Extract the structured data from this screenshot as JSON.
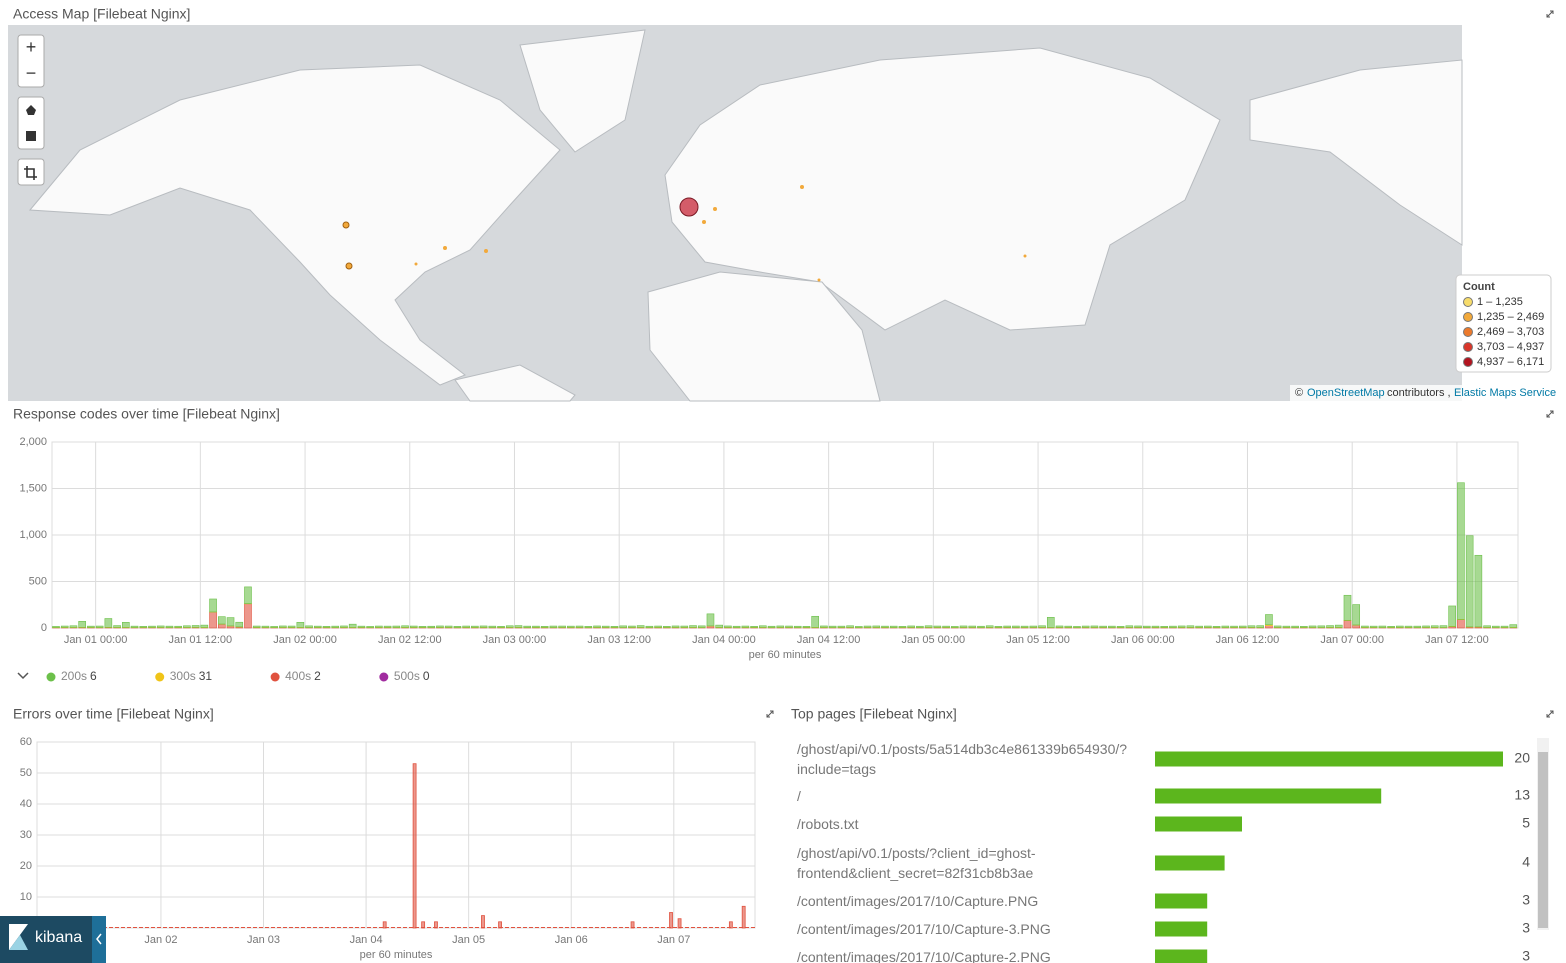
{
  "map": {
    "title": "Access Map [Filebeat Nginx]",
    "zoom_in": "+",
    "zoom_out": "−",
    "legend": {
      "title": "Count",
      "items": [
        {
          "label": "1 – 1,235",
          "color": "#f7dc6b"
        },
        {
          "label": "1,235 – 2,469",
          "color": "#f2a93b"
        },
        {
          "label": "2,469 – 3,703",
          "color": "#ec7a2c"
        },
        {
          "label": "3,703 – 4,937",
          "color": "#d9362a"
        },
        {
          "label": "4,937 – 6,171",
          "color": "#b2141f"
        }
      ]
    },
    "attribution": {
      "copyright": "©",
      "osm": "OpenStreetMap",
      "contributors": "contributors ,",
      "ems": "Elastic Maps Service"
    }
  },
  "chart_data": [
    {
      "type": "bar",
      "stacked": true,
      "title": "Response codes over time [Filebeat Nginx]",
      "x_label": "per 60 minutes",
      "grid": true,
      "xlim": [
        0,
        168
      ],
      "ylim": [
        0,
        2000
      ],
      "yticks": [
        0,
        500,
        {
          "value": 1000,
          "label": "1,000"
        },
        {
          "value": 1500,
          "label": "1,500"
        },
        {
          "value": 2000,
          "label": "2,000"
        }
      ],
      "xticks": [
        {
          "value": 5,
          "label": "Jan 01 00:00"
        },
        {
          "value": 17,
          "label": "Jan 01 12:00"
        },
        {
          "value": 29,
          "label": "Jan 02 00:00"
        },
        {
          "value": 41,
          "label": "Jan 02 12:00"
        },
        {
          "value": 53,
          "label": "Jan 03 00:00"
        },
        {
          "value": 65,
          "label": "Jan 03 12:00"
        },
        {
          "value": 77,
          "label": "Jan 04 00:00"
        },
        {
          "value": 89,
          "label": "Jan 04 12:00"
        },
        {
          "value": 101,
          "label": "Jan 05 00:00"
        },
        {
          "value": 113,
          "label": "Jan 05 12:00"
        },
        {
          "value": 125,
          "label": "Jan 06 00:00"
        },
        {
          "value": 137,
          "label": "Jan 06 12:00"
        },
        {
          "value": 149,
          "label": "Jan 07 00:00"
        },
        {
          "value": 161,
          "label": "Jan 07 12:00"
        }
      ],
      "x": [
        0,
        1,
        2,
        3,
        4,
        5,
        6,
        7,
        8,
        9,
        10,
        11,
        12,
        13,
        14,
        15,
        16,
        17,
        18,
        19,
        20,
        21,
        22,
        23,
        24,
        25,
        26,
        27,
        28,
        29,
        30,
        31,
        32,
        33,
        34,
        35,
        36,
        37,
        38,
        39,
        40,
        41,
        42,
        43,
        44,
        45,
        46,
        47,
        48,
        49,
        50,
        51,
        52,
        53,
        54,
        55,
        56,
        57,
        58,
        59,
        60,
        61,
        62,
        63,
        64,
        65,
        66,
        67,
        68,
        69,
        70,
        71,
        72,
        73,
        74,
        75,
        76,
        77,
        78,
        79,
        80,
        81,
        82,
        83,
        84,
        85,
        86,
        87,
        88,
        89,
        90,
        91,
        92,
        93,
        94,
        95,
        96,
        97,
        98,
        99,
        100,
        101,
        102,
        103,
        104,
        105,
        106,
        107,
        108,
        109,
        110,
        111,
        112,
        113,
        114,
        115,
        116,
        117,
        118,
        119,
        120,
        121,
        122,
        123,
        124,
        125,
        126,
        127,
        128,
        129,
        130,
        131,
        132,
        133,
        134,
        135,
        136,
        137,
        138,
        139,
        140,
        141,
        142,
        143,
        144,
        145,
        146,
        147,
        148,
        149,
        150,
        151,
        152,
        153,
        154,
        155,
        156,
        157,
        158,
        159,
        160,
        161,
        162,
        163,
        164,
        165,
        166,
        167
      ],
      "series": [
        {
          "name": "200s",
          "count": 6,
          "color": "#6cc04a",
          "values": [
            12,
            15,
            18,
            65,
            14,
            16,
            95,
            20,
            55,
            15,
            12,
            14,
            16,
            15,
            13,
            18,
            20,
            25,
            140,
            80,
            90,
            50,
            180,
            15,
            14,
            12,
            16,
            15,
            55,
            18,
            14,
            12,
            15,
            16,
            35,
            14,
            12,
            15,
            14,
            16,
            18,
            15,
            12,
            14,
            16,
            15,
            13,
            15,
            14,
            16,
            15,
            12,
            18,
            20,
            15,
            14,
            12,
            16,
            15,
            14,
            15,
            13,
            16,
            14,
            12,
            18,
            15,
            20,
            14,
            15,
            12,
            16,
            15,
            20,
            18,
            130,
            25,
            16,
            14,
            15,
            12,
            18,
            14,
            16,
            15,
            14,
            12,
            120,
            16,
            15,
            14,
            18,
            12,
            15,
            16,
            14,
            15,
            12,
            16,
            14,
            18,
            15,
            14,
            12,
            16,
            15,
            14,
            18,
            12,
            15,
            16,
            14,
            15,
            18,
            110,
            16,
            14,
            12,
            15,
            16,
            14,
            15,
            12,
            18,
            16,
            15,
            14,
            12,
            15,
            16,
            18,
            14,
            15,
            12,
            16,
            14,
            15,
            18,
            20,
            110,
            16,
            14,
            15,
            12,
            16,
            18,
            20,
            25,
            270,
            220,
            15,
            14,
            16,
            12,
            15,
            14,
            15,
            16,
            18,
            20,
            220,
            1470,
            980,
            770,
            18,
            15,
            14,
            30
          ]
        },
        {
          "name": "300s",
          "count": 31,
          "color": "#f0c418",
          "values": [
            2,
            2,
            2,
            2,
            2,
            2,
            2,
            2,
            2,
            2,
            2,
            2,
            2,
            2,
            2,
            2,
            2,
            2,
            2,
            2,
            2,
            2,
            2,
            2,
            2,
            2,
            2,
            2,
            2,
            2,
            2,
            2,
            2,
            2,
            2,
            2,
            2,
            2,
            2,
            2,
            2,
            2,
            2,
            2,
            2,
            2,
            2,
            2,
            2,
            2,
            2,
            2,
            2,
            2,
            2,
            2,
            2,
            2,
            2,
            2,
            2,
            2,
            2,
            2,
            2,
            2,
            2,
            2,
            2,
            2,
            2,
            2,
            2,
            2,
            2,
            2,
            2,
            2,
            2,
            2,
            2,
            2,
            2,
            2,
            2,
            2,
            2,
            2,
            2,
            2,
            2,
            2,
            2,
            2,
            2,
            2,
            2,
            2,
            2,
            2,
            2,
            2,
            2,
            2,
            2,
            2,
            2,
            2,
            2,
            2,
            2,
            2,
            2,
            2,
            2,
            2,
            2,
            2,
            2,
            2,
            2,
            2,
            2,
            2,
            2,
            2,
            2,
            2,
            2,
            2,
            2,
            2,
            2,
            2,
            2,
            2,
            2,
            2,
            2,
            10,
            2,
            2,
            2,
            2,
            2,
            2,
            2,
            2,
            2,
            2,
            2,
            2,
            2,
            2,
            2,
            2,
            2,
            2,
            2,
            2,
            2,
            2,
            2,
            2,
            2,
            2,
            2,
            2
          ]
        },
        {
          "name": "400s",
          "count": 2,
          "color": "#e0523f",
          "values": [
            3,
            4,
            4,
            5,
            4,
            3,
            5,
            4,
            4,
            3,
            4,
            4,
            4,
            3,
            4,
            4,
            5,
            4,
            170,
            40,
            20,
            10,
            260,
            4,
            4,
            3,
            4,
            4,
            4,
            3,
            4,
            4,
            3,
            4,
            4,
            4,
            3,
            4,
            4,
            3,
            4,
            4,
            4,
            3,
            4,
            4,
            3,
            4,
            4,
            4,
            3,
            4,
            4,
            4,
            3,
            4,
            4,
            3,
            4,
            4,
            4,
            3,
            4,
            4,
            4,
            3,
            4,
            4,
            3,
            4,
            4,
            4,
            4,
            4,
            3,
            20,
            4,
            4,
            3,
            4,
            4,
            4,
            3,
            4,
            4,
            3,
            4,
            4,
            4,
            3,
            4,
            4,
            3,
            4,
            4,
            4,
            3,
            4,
            4,
            3,
            4,
            4,
            4,
            3,
            4,
            4,
            3,
            4,
            4,
            4,
            3,
            4,
            4,
            4,
            3,
            4,
            4,
            3,
            4,
            4,
            4,
            3,
            4,
            4,
            4,
            3,
            4,
            4,
            3,
            4,
            4,
            4,
            4,
            4,
            3,
            4,
            4,
            4,
            3,
            25,
            4,
            4,
            3,
            4,
            4,
            3,
            4,
            4,
            80,
            30,
            4,
            4,
            3,
            4,
            4,
            4,
            3,
            4,
            4,
            3,
            15,
            90,
            10,
            10,
            4,
            3,
            4,
            4
          ]
        },
        {
          "name": "500s",
          "count": 0,
          "color": "#a12ca0",
          "values": [
            0,
            0,
            0,
            0,
            0,
            0,
            0,
            0,
            0,
            0,
            0,
            0,
            0,
            0,
            0,
            0,
            0,
            0,
            0,
            0,
            0,
            0,
            0,
            0,
            0,
            0,
            0,
            0,
            0,
            0,
            0,
            0,
            0,
            0,
            0,
            0,
            0,
            0,
            0,
            0,
            0,
            0,
            0,
            0,
            0,
            0,
            0,
            0,
            0,
            0,
            0,
            0,
            0,
            0,
            0,
            0,
            0,
            0,
            0,
            0,
            0,
            0,
            0,
            0,
            0,
            0,
            0,
            0,
            0,
            0,
            0,
            0,
            0,
            0,
            0,
            0,
            0,
            0,
            0,
            0,
            0,
            0,
            0,
            0,
            0,
            0,
            0,
            0,
            0,
            0,
            0,
            0,
            0,
            0,
            0,
            0,
            0,
            0,
            0,
            0,
            0,
            0,
            0,
            0,
            0,
            0,
            0,
            0,
            0,
            0,
            0,
            0,
            0,
            0,
            0,
            0,
            0,
            0,
            0,
            0,
            0,
            0,
            0,
            0,
            0,
            0,
            0,
            0,
            0,
            0,
            0,
            0,
            0,
            0,
            0,
            0,
            0,
            0,
            0,
            0,
            0,
            0,
            0,
            0,
            0,
            0,
            0,
            0,
            0,
            0,
            0,
            0,
            0,
            0,
            0,
            0,
            0,
            0,
            0,
            0,
            0,
            0,
            0,
            0,
            0,
            0,
            0,
            0
          ]
        }
      ]
    },
    {
      "type": "bar",
      "title": "Errors over time [Filebeat Nginx]",
      "x_label": "per 60 minutes",
      "grid": true,
      "color": "#e0523f",
      "xlim": [
        0,
        168
      ],
      "ylim": [
        0,
        60
      ],
      "yticks": [
        10,
        20,
        30,
        40,
        50,
        60
      ],
      "xticks": [
        {
          "value": 29,
          "label": "Jan 02"
        },
        {
          "value": 53,
          "label": "Jan 03"
        },
        {
          "value": 77,
          "label": "Jan 04"
        },
        {
          "value": 101,
          "label": "Jan 05"
        },
        {
          "value": 125,
          "label": "Jan 06"
        },
        {
          "value": 149,
          "label": "Jan 07"
        }
      ],
      "x": [
        81,
        88,
        90,
        93,
        104,
        108,
        139,
        148,
        150,
        162,
        165
      ],
      "values": [
        2,
        53,
        2,
        2,
        4,
        2,
        2,
        5,
        3,
        2,
        7
      ]
    },
    {
      "type": "hbar",
      "title": "Top pages [Filebeat Nginx]",
      "color": "#5cb61d",
      "categories": [
        "/ghost/api/v0.1/posts/5a514db3c4e861339b654930/?include=tags",
        "/",
        "/robots.txt",
        "/ghost/api/v0.1/posts/?client_id=ghost-frontend&client_secret=82f31cb8b3ae",
        "/content/images/2017/10/Capture.PNG",
        "/content/images/2017/10/Capture-3.PNG",
        "/content/images/2017/10/Capture-2.PNG"
      ],
      "values": [
        20,
        13,
        5,
        4,
        3,
        3,
        3
      ]
    }
  ],
  "brand": "kibana"
}
